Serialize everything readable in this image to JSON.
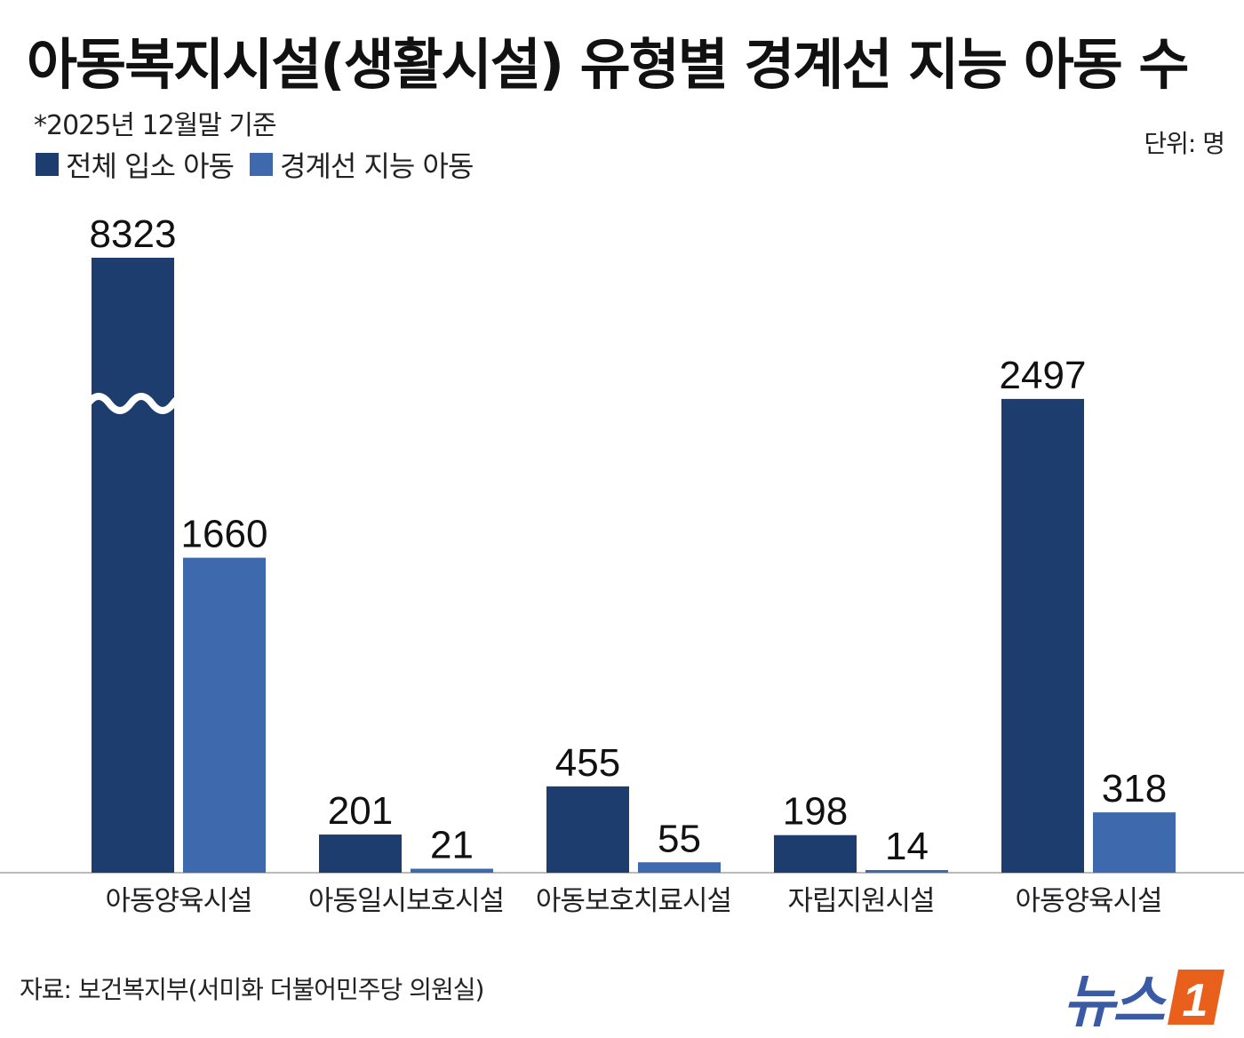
{
  "title": "아동복지시설(생활시설) 유형별 경계선 지능 아동 수",
  "subtitle": "*2025년 12월말 기준",
  "unit": "단위: 명",
  "source": "자료: 보건복지부(서미화 더불어민주당 의원실)",
  "logo": {
    "text": "뉴스",
    "badge": "1"
  },
  "colors": {
    "total": "#1c3d6e",
    "borderline": "#3e69ad",
    "axis": "#bbbbbb"
  },
  "chart_data": {
    "type": "bar",
    "categories": [
      "아동양육시설",
      "아동일시보호시설",
      "아동보호치료시설",
      "자립지원시설",
      "아동양육시설"
    ],
    "series": [
      {
        "name": "전체 입소 아동",
        "values": [
          8323,
          201,
          455,
          198,
          2497
        ]
      },
      {
        "name": "경계선 지능 아동",
        "values": [
          1660,
          21,
          55,
          14,
          318
        ]
      }
    ],
    "axis_break": {
      "category_index": 0,
      "series_index": 0
    },
    "title": "아동복지시설(생활시설) 유형별 경계선 지능 아동 수",
    "xlabel": "",
    "ylabel": "",
    "legend": "top-left",
    "grid": false
  }
}
